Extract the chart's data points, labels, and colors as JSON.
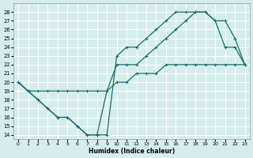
{
  "xlabel": "Humidex (Indice chaleur)",
  "background_color": "#d6eded",
  "grid_color": "#b8d8d8",
  "line_color": "#1a6b6b",
  "xlim": [
    -0.5,
    23.5
  ],
  "ylim": [
    13.5,
    29.0
  ],
  "xticks": [
    0,
    1,
    2,
    3,
    4,
    5,
    6,
    7,
    8,
    9,
    10,
    11,
    12,
    13,
    14,
    15,
    16,
    17,
    18,
    19,
    20,
    21,
    22,
    23
  ],
  "yticks": [
    14,
    15,
    16,
    17,
    18,
    19,
    20,
    21,
    22,
    23,
    24,
    25,
    26,
    27,
    28
  ],
  "line1_x": [
    0,
    1,
    2,
    3,
    4,
    5,
    6,
    7,
    8,
    9,
    10,
    11,
    12,
    13,
    14,
    15,
    16,
    17,
    18,
    19,
    20,
    21,
    22,
    23
  ],
  "line1_y": [
    20,
    19,
    18,
    17,
    16,
    16,
    15,
    14,
    14,
    19,
    22,
    22,
    22,
    23,
    24,
    25,
    26,
    27,
    28,
    28,
    27,
    24,
    24,
    22
  ],
  "line2_x": [
    0,
    1,
    2,
    3,
    4,
    5,
    6,
    7,
    8,
    9,
    10,
    11,
    12,
    13,
    14,
    15,
    16,
    17,
    18,
    19,
    20,
    21,
    22,
    23
  ],
  "line2_y": [
    20,
    19,
    18,
    17,
    16,
    16,
    15,
    14,
    14,
    14,
    23,
    24,
    24,
    25,
    26,
    27,
    28,
    28,
    28,
    28,
    27,
    27,
    25,
    22
  ],
  "line3_x": [
    0,
    1,
    2,
    3,
    4,
    5,
    6,
    7,
    8,
    9,
    10,
    11,
    12,
    13,
    14,
    15,
    16,
    17,
    18,
    19,
    20,
    21,
    22,
    23
  ],
  "line3_y": [
    20,
    19,
    19,
    19,
    19,
    19,
    19,
    19,
    19,
    19,
    20,
    20,
    21,
    21,
    21,
    22,
    22,
    22,
    22,
    22,
    22,
    22,
    22,
    22
  ]
}
